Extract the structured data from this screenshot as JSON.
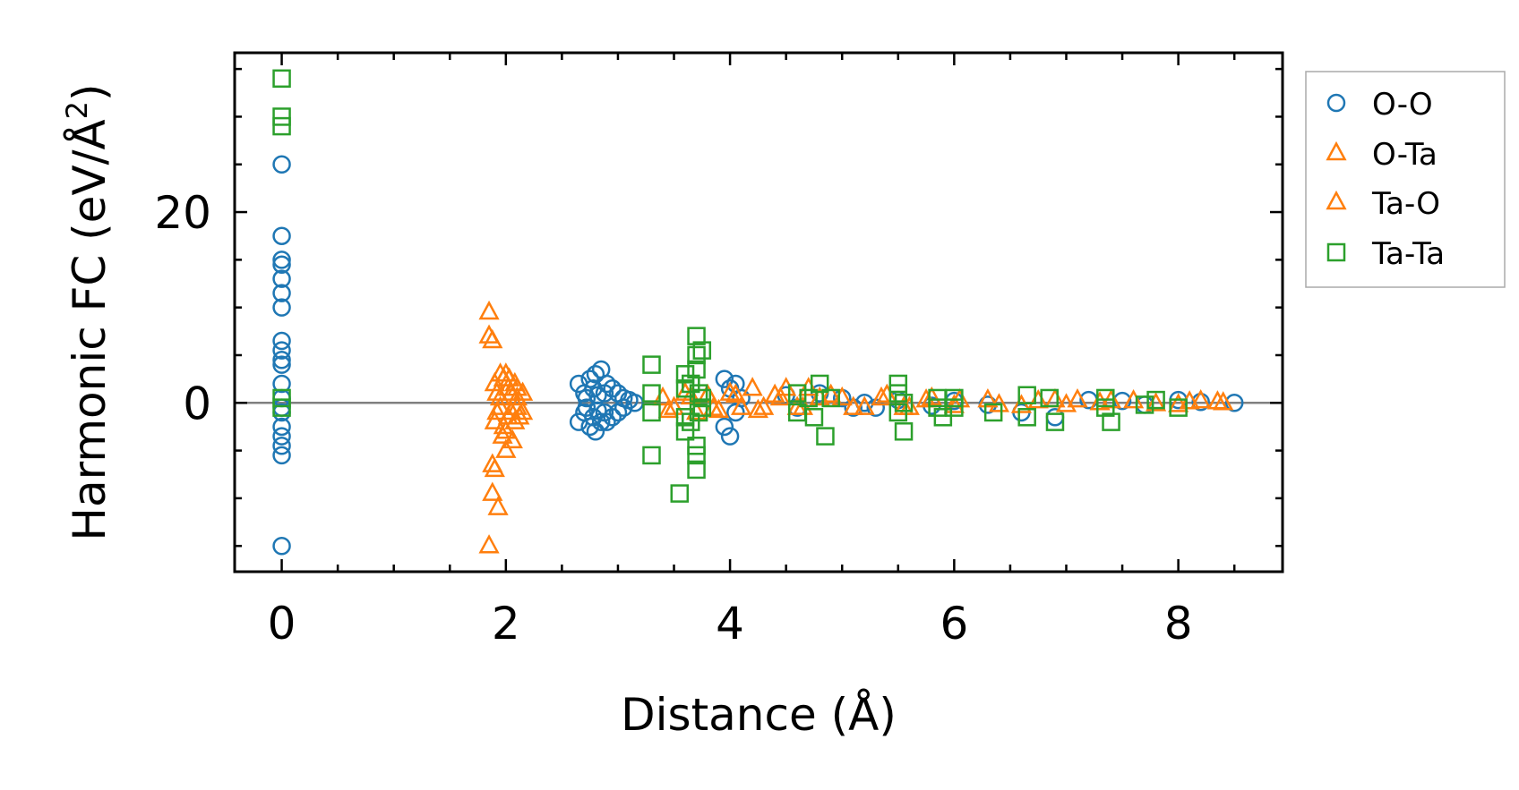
{
  "chart_data": {
    "type": "scatter",
    "xlabel": "Distance (Å)",
    "ylabel_main": "Harmonic FC (eV/Å",
    "ylabel_sup": "2",
    "ylabel_close": ")",
    "xlim": [
      -0.42,
      8.93
    ],
    "ylim": [
      -17.7,
      36.7
    ],
    "x_ticks": [
      0,
      2,
      4,
      6,
      8
    ],
    "x_tick_labels": [
      "0",
      "2",
      "4",
      "6",
      "8"
    ],
    "y_ticks": [
      0,
      20
    ],
    "y_tick_labels": [
      "0",
      "20"
    ],
    "x_minor_step": 0.5,
    "y_minor_step": 5,
    "zero_line": true,
    "legend_position": "outside-top-right",
    "legend": [
      "O-O",
      "O-Ta",
      "Ta-O",
      "Ta-Ta"
    ],
    "series": [
      {
        "name": "O-O",
        "marker": "circle",
        "color": "#1f77b4",
        "points": [
          [
            0,
            -15
          ],
          [
            0,
            25
          ],
          [
            0,
            17.5
          ],
          [
            0,
            15
          ],
          [
            0,
            14.5
          ],
          [
            0,
            13
          ],
          [
            0,
            11.5
          ],
          [
            0,
            10
          ],
          [
            0,
            6.5
          ],
          [
            0,
            5.5
          ],
          [
            0,
            4.5
          ],
          [
            0,
            4
          ],
          [
            0,
            2
          ],
          [
            0,
            0.5
          ],
          [
            0,
            -0.5
          ],
          [
            0,
            -1
          ],
          [
            0,
            -2.5
          ],
          [
            0,
            -3.5
          ],
          [
            0,
            -4.5
          ],
          [
            0,
            -5.5
          ],
          [
            2.65,
            2
          ],
          [
            2.65,
            -2
          ],
          [
            2.7,
            1
          ],
          [
            2.7,
            -1
          ],
          [
            2.72,
            0.5
          ],
          [
            2.72,
            -0.5
          ],
          [
            2.75,
            2.5
          ],
          [
            2.75,
            -2.5
          ],
          [
            2.78,
            1.5
          ],
          [
            2.78,
            -1.5
          ],
          [
            2.8,
            3
          ],
          [
            2.8,
            -3
          ],
          [
            2.82,
            0.8
          ],
          [
            2.82,
            -0.8
          ],
          [
            2.85,
            3.5
          ],
          [
            2.85,
            -2
          ],
          [
            2.88,
            1
          ],
          [
            2.88,
            -1
          ],
          [
            2.9,
            2
          ],
          [
            2.9,
            -2
          ],
          [
            2.95,
            1.5
          ],
          [
            2.95,
            -1.5
          ],
          [
            3.0,
            1
          ],
          [
            3.0,
            -1
          ],
          [
            3.05,
            0.5
          ],
          [
            3.05,
            -0.5
          ],
          [
            3.1,
            0.3
          ],
          [
            3.15,
            0
          ],
          [
            3.95,
            2.5
          ],
          [
            3.95,
            -2.5
          ],
          [
            4.0,
            1.5
          ],
          [
            4.0,
            -3.5
          ],
          [
            4.05,
            2
          ],
          [
            4.05,
            -1
          ],
          [
            4.1,
            0.5
          ],
          [
            4.5,
            0.8
          ],
          [
            4.6,
            -0.5
          ],
          [
            4.8,
            1
          ],
          [
            5.0,
            0.5
          ],
          [
            5.1,
            -0.5
          ],
          [
            5.2,
            0
          ],
          [
            5.3,
            -0.5
          ],
          [
            5.5,
            0.3
          ],
          [
            5.8,
            -0.3
          ],
          [
            6.0,
            0.2
          ],
          [
            6.3,
            -0.2
          ],
          [
            6.6,
            -1
          ],
          [
            6.9,
            -1.5
          ],
          [
            7.2,
            0.3
          ],
          [
            7.5,
            0.2
          ],
          [
            7.7,
            -0.2
          ],
          [
            8.0,
            0.3
          ],
          [
            8.2,
            0.1
          ],
          [
            8.5,
            0
          ]
        ]
      },
      {
        "name": "O-Ta",
        "marker": "triangle",
        "color": "#ff7f0e",
        "points": [
          [
            1.85,
            9.5
          ],
          [
            1.85,
            7
          ],
          [
            1.88,
            -6.5
          ],
          [
            1.88,
            -9.5
          ],
          [
            1.9,
            2
          ],
          [
            1.9,
            -2
          ],
          [
            1.92,
            1
          ],
          [
            1.92,
            -1
          ],
          [
            1.95,
            0.5
          ],
          [
            1.95,
            -0.5
          ],
          [
            1.98,
            2.5
          ],
          [
            1.98,
            -2.5
          ],
          [
            2.0,
            3
          ],
          [
            2.0,
            -3
          ],
          [
            2.02,
            1.5
          ],
          [
            2.02,
            -1.5
          ],
          [
            2.05,
            1
          ],
          [
            2.05,
            -1
          ],
          [
            2.08,
            2
          ],
          [
            2.08,
            -2
          ],
          [
            2.1,
            0.5
          ],
          [
            2.1,
            -0.5
          ],
          [
            2.15,
            1
          ],
          [
            2.15,
            -1
          ],
          [
            3.4,
            0.5
          ],
          [
            3.5,
            -0.5
          ],
          [
            3.6,
            1
          ],
          [
            3.7,
            -1
          ],
          [
            3.8,
            0.8
          ],
          [
            3.9,
            -0.8
          ],
          [
            4.0,
            1
          ],
          [
            4.1,
            -0.5
          ],
          [
            4.2,
            1.5
          ],
          [
            4.3,
            -0.5
          ],
          [
            4.4,
            0.8
          ],
          [
            4.5,
            1.5
          ],
          [
            4.6,
            -0.5
          ],
          [
            4.7,
            1.5
          ],
          [
            4.8,
            0.5
          ],
          [
            5.0,
            0.5
          ],
          [
            5.2,
            -0.5
          ],
          [
            5.4,
            0.8
          ],
          [
            5.6,
            -0.5
          ],
          [
            5.8,
            0.5
          ],
          [
            6.0,
            -0.3
          ],
          [
            6.3,
            0.3
          ],
          [
            6.6,
            -0.3
          ],
          [
            6.9,
            0.3
          ],
          [
            7.1,
            0.3
          ],
          [
            7.3,
            0
          ],
          [
            7.6,
            0.2
          ],
          [
            8.0,
            -0.2
          ],
          [
            8.2,
            0.2
          ],
          [
            8.4,
            0
          ]
        ]
      },
      {
        "name": "Ta-O",
        "marker": "triangle",
        "color": "#ff7f0e",
        "points": [
          [
            1.85,
            -15
          ],
          [
            1.88,
            6.5
          ],
          [
            1.9,
            -7
          ],
          [
            1.93,
            -11
          ],
          [
            1.95,
            3
          ],
          [
            1.97,
            -3.5
          ],
          [
            2.0,
            -5
          ],
          [
            2.03,
            2.5
          ],
          [
            2.06,
            -4
          ],
          [
            2.1,
            1.5
          ],
          [
            2.12,
            -1.5
          ],
          [
            3.45,
            -0.8
          ],
          [
            3.65,
            0.6
          ],
          [
            3.85,
            -0.6
          ],
          [
            4.05,
            0.8
          ],
          [
            4.25,
            -0.8
          ],
          [
            4.45,
            0.5
          ],
          [
            4.65,
            -0.5
          ],
          [
            4.9,
            0.8
          ],
          [
            5.1,
            -0.5
          ],
          [
            5.35,
            0.5
          ],
          [
            5.55,
            -0.5
          ],
          [
            5.75,
            0.3
          ],
          [
            6.05,
            0.3
          ],
          [
            6.4,
            -0.2
          ],
          [
            6.75,
            0.2
          ],
          [
            7.0,
            -0.2
          ],
          [
            7.4,
            0.2
          ],
          [
            7.8,
            -0.1
          ],
          [
            8.1,
            0.1
          ],
          [
            8.35,
            0.1
          ]
        ]
      },
      {
        "name": "Ta-Ta",
        "marker": "square",
        "color": "#2ca02c",
        "points": [
          [
            0,
            34
          ],
          [
            0,
            30
          ],
          [
            0,
            29
          ],
          [
            0,
            -0.5
          ],
          [
            0,
            0.5
          ],
          [
            3.3,
            4
          ],
          [
            3.3,
            -5.5
          ],
          [
            3.3,
            1
          ],
          [
            3.3,
            -1
          ],
          [
            3.55,
            -9.5
          ],
          [
            3.6,
            3
          ],
          [
            3.6,
            -3
          ],
          [
            3.6,
            1.5
          ],
          [
            3.6,
            -1.5
          ],
          [
            3.65,
            2
          ],
          [
            3.65,
            -2
          ],
          [
            3.7,
            7
          ],
          [
            3.7,
            5
          ],
          [
            3.7,
            3.5
          ],
          [
            3.7,
            -4.5
          ],
          [
            3.7,
            -5.5
          ],
          [
            3.7,
            -7
          ],
          [
            3.72,
            1
          ],
          [
            3.72,
            -1
          ],
          [
            3.75,
            5.5
          ],
          [
            3.75,
            0.5
          ],
          [
            3.75,
            -0.5
          ],
          [
            4.6,
            1
          ],
          [
            4.6,
            -1
          ],
          [
            4.7,
            0.5
          ],
          [
            4.75,
            -1.5
          ],
          [
            4.8,
            2
          ],
          [
            4.85,
            -3.5
          ],
          [
            4.9,
            0.5
          ],
          [
            5.5,
            2
          ],
          [
            5.5,
            1
          ],
          [
            5.5,
            -1
          ],
          [
            5.55,
            -3
          ],
          [
            5.55,
            0
          ],
          [
            5.85,
            0.5
          ],
          [
            5.85,
            -0.5
          ],
          [
            5.9,
            -1.5
          ],
          [
            6.0,
            0.5
          ],
          [
            6.0,
            -0.5
          ],
          [
            6.35,
            -1
          ],
          [
            6.65,
            0.8
          ],
          [
            6.65,
            -1.5
          ],
          [
            6.85,
            0.5
          ],
          [
            6.9,
            -2
          ],
          [
            7.35,
            0.5
          ],
          [
            7.35,
            -0.5
          ],
          [
            7.4,
            -2
          ],
          [
            7.7,
            -0.2
          ],
          [
            7.8,
            0.3
          ],
          [
            8.0,
            -0.5
          ]
        ]
      }
    ]
  }
}
